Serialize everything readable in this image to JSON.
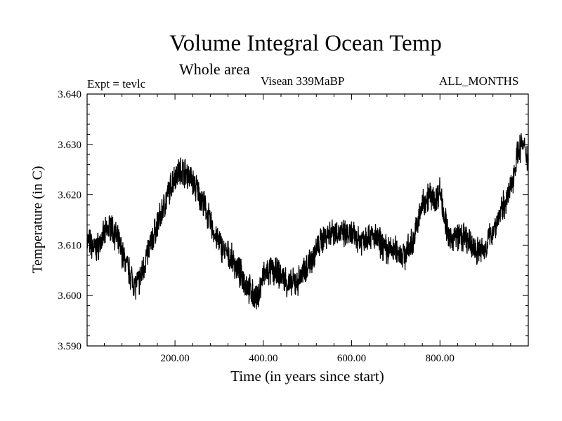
{
  "chart_data": {
    "type": "line",
    "title": "Volume Integral Ocean Temp",
    "subtitle": "Whole area",
    "experiment": "Expt = tevlc",
    "period": "Visean 339MaBP",
    "months": "ALL_MONTHS",
    "xlabel": "Time (in years since start)",
    "ylabel": "Temperature (in C)",
    "xlim": [
      1,
      1000
    ],
    "ylim": [
      3.59,
      3.64
    ],
    "xticks": [
      200,
      400,
      600,
      800
    ],
    "xtick_labels": [
      "200.00",
      "400.00",
      "600.00",
      "800.00"
    ],
    "yticks": [
      3.59,
      3.6,
      3.61,
      3.62,
      3.63,
      3.64
    ],
    "ytick_labels": [
      "3.590",
      "3.600",
      "3.610",
      "3.620",
      "3.630",
      "3.640"
    ],
    "line_color": "#000000",
    "series": [
      {
        "name": "Volume integral ocean temperature",
        "x": [
          1,
          20,
          40,
          55,
          70,
          90,
          110,
          120,
          140,
          160,
          180,
          200,
          215,
          230,
          250,
          270,
          290,
          310,
          330,
          350,
          370,
          385,
          400,
          420,
          440,
          460,
          480,
          500,
          520,
          540,
          560,
          580,
          600,
          620,
          640,
          660,
          680,
          700,
          720,
          740,
          760,
          775,
          790,
          800,
          810,
          820,
          840,
          860,
          880,
          900,
          920,
          940,
          960,
          975,
          985,
          1000
        ],
        "values": [
          3.611,
          3.609,
          3.612,
          3.614,
          3.611,
          3.606,
          3.602,
          3.603,
          3.609,
          3.614,
          3.619,
          3.624,
          3.625,
          3.624,
          3.621,
          3.617,
          3.612,
          3.609,
          3.607,
          3.604,
          3.601,
          3.599,
          3.604,
          3.605,
          3.604,
          3.602,
          3.603,
          3.606,
          3.609,
          3.612,
          3.613,
          3.612,
          3.612,
          3.611,
          3.612,
          3.611,
          3.609,
          3.609,
          3.608,
          3.611,
          3.618,
          3.62,
          3.619,
          3.621,
          3.616,
          3.611,
          3.612,
          3.611,
          3.609,
          3.609,
          3.613,
          3.617,
          3.621,
          3.628,
          3.63,
          3.627
        ]
      }
    ]
  }
}
